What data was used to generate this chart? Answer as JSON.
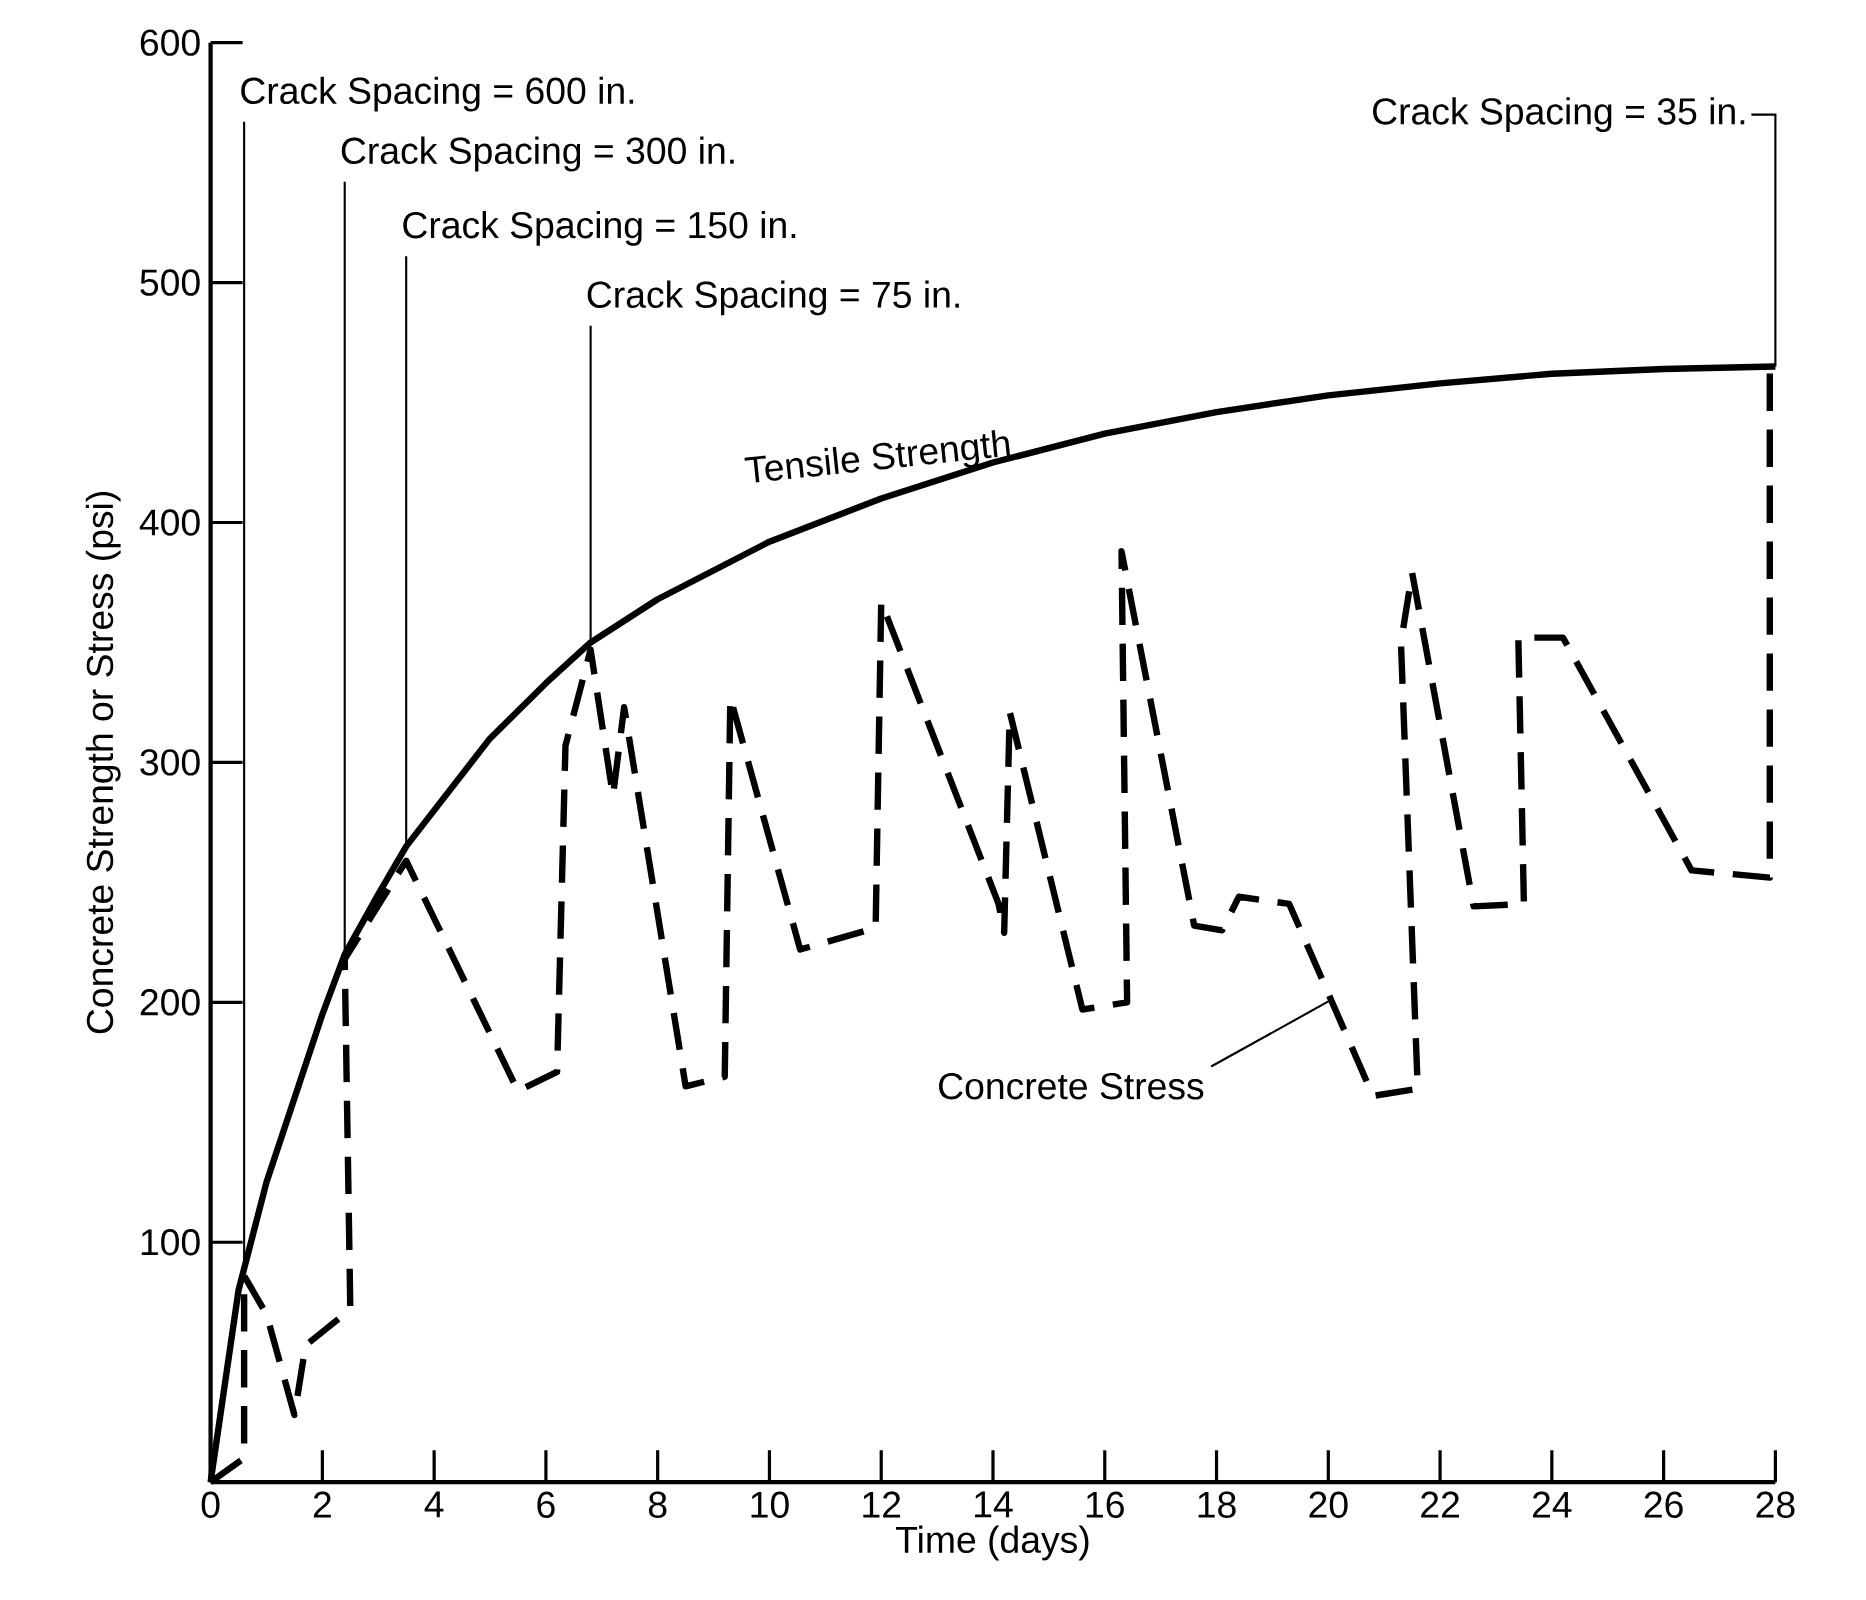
{
  "chart_data": {
    "type": "line",
    "xlabel": "Time (days)",
    "ylabel": "Concrete Strength or Stress (psi)",
    "xlim": [
      0,
      28
    ],
    "ylim": [
      0,
      600
    ],
    "xticks": [
      0,
      2,
      4,
      6,
      8,
      10,
      12,
      14,
      16,
      18,
      20,
      22,
      24,
      26,
      28
    ],
    "yticks": [
      100,
      200,
      300,
      400,
      500,
      600
    ],
    "grid": false,
    "legend": false,
    "marker": "none",
    "series": [
      {
        "name": "Tensile Strength",
        "color": "#000000",
        "line_style": "solid",
        "x": [
          0,
          0.5,
          1,
          1.5,
          2,
          2.4,
          3,
          3.5,
          4,
          5,
          6,
          6.8,
          8,
          10,
          12,
          14,
          16,
          18,
          20,
          22,
          24,
          26,
          28
        ],
        "values": [
          0,
          80,
          125,
          160,
          195,
          220,
          245,
          265,
          280,
          310,
          333,
          350,
          368,
          392,
          410,
          425,
          437,
          446,
          453,
          458,
          462,
          464,
          465
        ]
      },
      {
        "name": "Concrete Stress",
        "color": "#000000",
        "line_style": "dashed",
        "x": [
          0,
          0.6,
          0.6,
          1.0,
          1.5,
          1.7,
          2.5,
          2.4,
          3.5,
          5.5,
          6.2,
          6.35,
          6.8,
          7.2,
          7.4,
          8.5,
          9.2,
          9.3,
          10.55,
          11.9,
          12.0,
          14.1,
          14.2,
          14.3,
          15.6,
          16.4,
          16.3,
          17.6,
          18.1,
          18.4,
          19.3,
          20.8,
          21.6,
          21.3,
          21.5,
          22.6,
          23.5,
          23.4,
          24.2,
          26.5,
          27.9,
          27.9
        ],
        "values": [
          0,
          10,
          86,
          70,
          28,
          57,
          72,
          218,
          259,
          163,
          171,
          307,
          347,
          286,
          323,
          165,
          169,
          327,
          222,
          231,
          367,
          241,
          229,
          321,
          197,
          200,
          388,
          232,
          230,
          244,
          241,
          161,
          164,
          350,
          379,
          240,
          241,
          352,
          352,
          255,
          252,
          465
        ]
      }
    ],
    "annotations": [
      {
        "text": "Crack Spacing = 600 in.",
        "x": 0.6,
        "y": 86
      },
      {
        "text": "Crack Spacing = 300 in.",
        "x": 2.4,
        "y": 218
      },
      {
        "text": "Crack Spacing = 150 in.",
        "x": 3.5,
        "y": 265
      },
      {
        "text": "Crack Spacing = 75 in.",
        "x": 6.8,
        "y": 350
      },
      {
        "text": "Crack Spacing = 35 in.",
        "x": 28,
        "y": 465
      }
    ]
  }
}
